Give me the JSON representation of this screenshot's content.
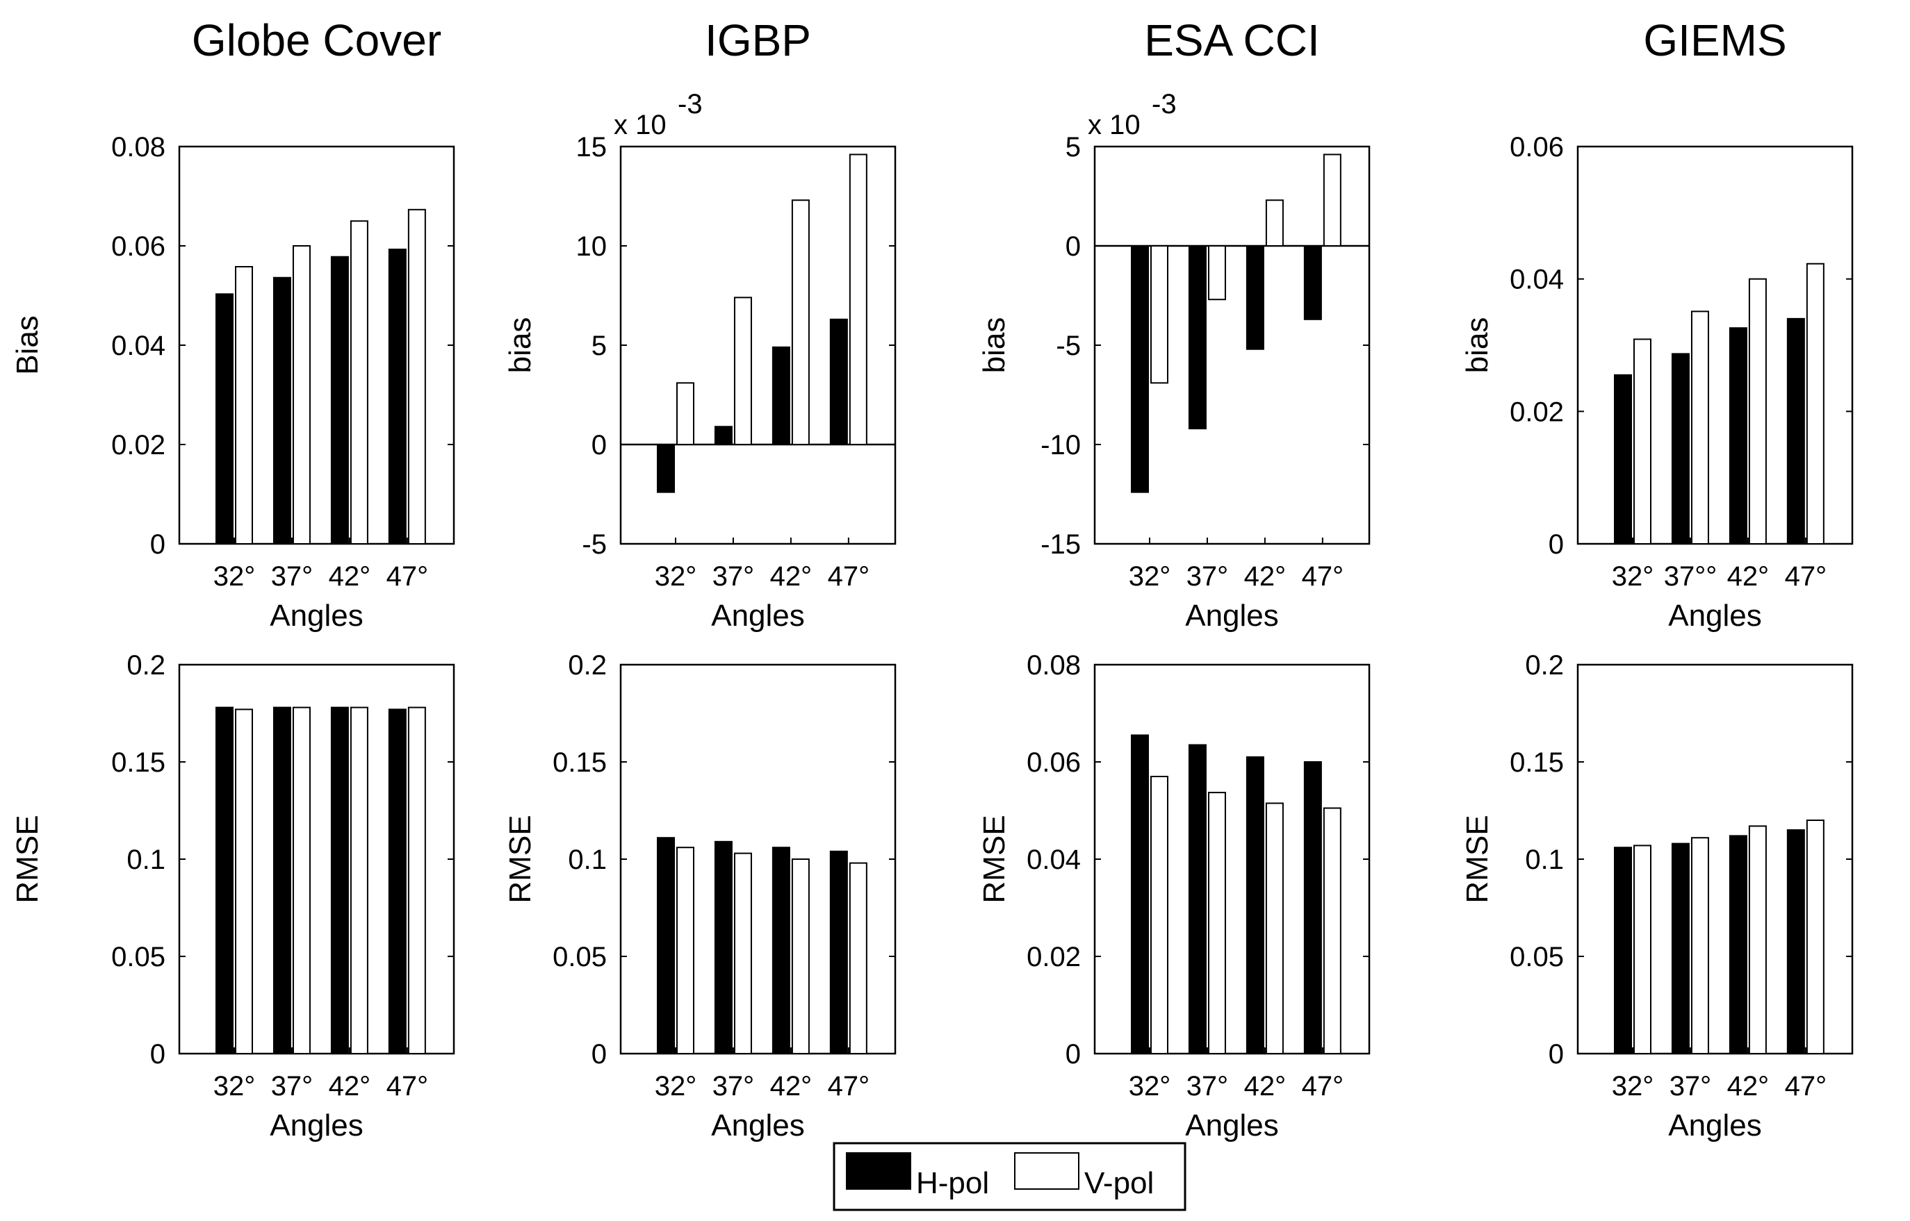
{
  "legend": {
    "h_label": "H-pol",
    "v_label": "V-pol"
  },
  "colors": {
    "h_fill": "#000000",
    "v_fill": "#ffffff",
    "axis": "#000000"
  },
  "chart_data": [
    {
      "type": "bar",
      "column_title": "Globe Cover",
      "categories": [
        "32°",
        "37°",
        "42°",
        "47°"
      ],
      "xlabel": "Angles",
      "ylabel": "Bias",
      "ylim": [
        0,
        0.08
      ],
      "yticks": [
        0,
        0.02,
        0.04,
        0.06,
        0.08
      ],
      "ytick_labels": [
        "0",
        "0.02",
        "0.04",
        "0.06",
        "0.08"
      ],
      "exponent_label": "",
      "series": [
        {
          "name": "H-pol",
          "values": [
            0.0503,
            0.0536,
            0.0578,
            0.0593
          ]
        },
        {
          "name": "V-pol",
          "values": [
            0.0558,
            0.06,
            0.065,
            0.0673
          ]
        }
      ]
    },
    {
      "type": "bar",
      "column_title": "IGBP",
      "categories": [
        "32°",
        "37°",
        "42°",
        "47°"
      ],
      "xlabel": "Angles",
      "ylabel": "bias",
      "ylim": [
        -0.005,
        0.015
      ],
      "yticks": [
        -0.005,
        0,
        0.005,
        0.01,
        0.015
      ],
      "ytick_labels": [
        "-5",
        "0",
        "5",
        "10",
        "15"
      ],
      "exponent_label": "x 10",
      "exponent_power": "-3",
      "series": [
        {
          "name": "H-pol",
          "values": [
            -0.0024,
            0.0009,
            0.0049,
            0.0063
          ]
        },
        {
          "name": "V-pol",
          "values": [
            0.0031,
            0.0074,
            0.0123,
            0.0146
          ]
        }
      ]
    },
    {
      "type": "bar",
      "column_title": "ESA CCI",
      "categories": [
        "32°",
        "37°",
        "42°",
        "47°"
      ],
      "xlabel": "Angles",
      "ylabel": "bias",
      "ylim": [
        -0.015,
        0.005
      ],
      "yticks": [
        -0.015,
        -0.01,
        -0.005,
        0,
        0.005
      ],
      "ytick_labels": [
        "-15",
        "-10",
        "-5",
        "0",
        "5"
      ],
      "exponent_label": "x 10",
      "exponent_power": "-3",
      "series": [
        {
          "name": "H-pol",
          "values": [
            -0.0124,
            -0.0092,
            -0.0052,
            -0.0037
          ]
        },
        {
          "name": "V-pol",
          "values": [
            -0.0069,
            -0.0027,
            0.0023,
            0.0046
          ]
        }
      ]
    },
    {
      "type": "bar",
      "column_title": "GIEMS",
      "categories": [
        "32°",
        "37°°",
        "42°",
        "47°"
      ],
      "xlabel": "Angles",
      "ylabel": "bias",
      "ylim": [
        0,
        0.06
      ],
      "yticks": [
        0,
        0.02,
        0.04,
        0.06
      ],
      "ytick_labels": [
        "0",
        "0.02",
        "0.04",
        "0.06"
      ],
      "exponent_label": "",
      "series": [
        {
          "name": "H-pol",
          "values": [
            0.0255,
            0.0287,
            0.0326,
            0.034
          ]
        },
        {
          "name": "V-pol",
          "values": [
            0.0309,
            0.0351,
            0.04,
            0.0423
          ]
        }
      ]
    },
    {
      "type": "bar",
      "column_title": "",
      "categories": [
        "32°",
        "37°",
        "42°",
        "47°"
      ],
      "xlabel": "Angles",
      "ylabel": "RMSE",
      "ylim": [
        0,
        0.2
      ],
      "yticks": [
        0,
        0.05,
        0.1,
        0.15,
        0.2
      ],
      "ytick_labels": [
        "0",
        "0.05",
        "0.1",
        "0.15",
        "0.2"
      ],
      "exponent_label": "",
      "series": [
        {
          "name": "H-pol",
          "values": [
            0.178,
            0.178,
            0.178,
            0.177
          ]
        },
        {
          "name": "V-pol",
          "values": [
            0.177,
            0.178,
            0.178,
            0.178
          ]
        }
      ]
    },
    {
      "type": "bar",
      "column_title": "",
      "categories": [
        "32°",
        "37°",
        "42°",
        "47°"
      ],
      "xlabel": "Angles",
      "ylabel": "RMSE",
      "ylim": [
        0,
        0.2
      ],
      "yticks": [
        0,
        0.05,
        0.1,
        0.15,
        0.2
      ],
      "ytick_labels": [
        "0",
        "0.05",
        "0.1",
        "0.15",
        "0.2"
      ],
      "exponent_label": "",
      "series": [
        {
          "name": "H-pol",
          "values": [
            0.111,
            0.109,
            0.106,
            0.104
          ]
        },
        {
          "name": "V-pol",
          "values": [
            0.106,
            0.103,
            0.1,
            0.098
          ]
        }
      ]
    },
    {
      "type": "bar",
      "column_title": "",
      "categories": [
        "32°",
        "37°",
        "42°",
        "47°"
      ],
      "xlabel": "Angles",
      "ylabel": "RMSE",
      "ylim": [
        0,
        0.08
      ],
      "yticks": [
        0,
        0.02,
        0.04,
        0.06,
        0.08
      ],
      "ytick_labels": [
        "0",
        "0.02",
        "0.04",
        "0.06",
        "0.08"
      ],
      "exponent_label": "",
      "series": [
        {
          "name": "H-pol",
          "values": [
            0.0655,
            0.0635,
            0.061,
            0.06
          ]
        },
        {
          "name": "V-pol",
          "values": [
            0.057,
            0.0537,
            0.0515,
            0.0505
          ]
        }
      ]
    },
    {
      "type": "bar",
      "column_title": "",
      "categories": [
        "32°",
        "37°",
        "42°",
        "47°"
      ],
      "xlabel": "Angles",
      "ylabel": "RMSE",
      "ylim": [
        0,
        0.2
      ],
      "yticks": [
        0,
        0.05,
        0.1,
        0.15,
        0.2
      ],
      "ytick_labels": [
        "0",
        "0.05",
        "0.1",
        "0.15",
        "0.2"
      ],
      "exponent_label": "",
      "series": [
        {
          "name": "H-pol",
          "values": [
            0.106,
            0.108,
            0.112,
            0.115
          ]
        },
        {
          "name": "V-pol",
          "values": [
            0.107,
            0.111,
            0.117,
            0.12
          ]
        }
      ]
    }
  ]
}
